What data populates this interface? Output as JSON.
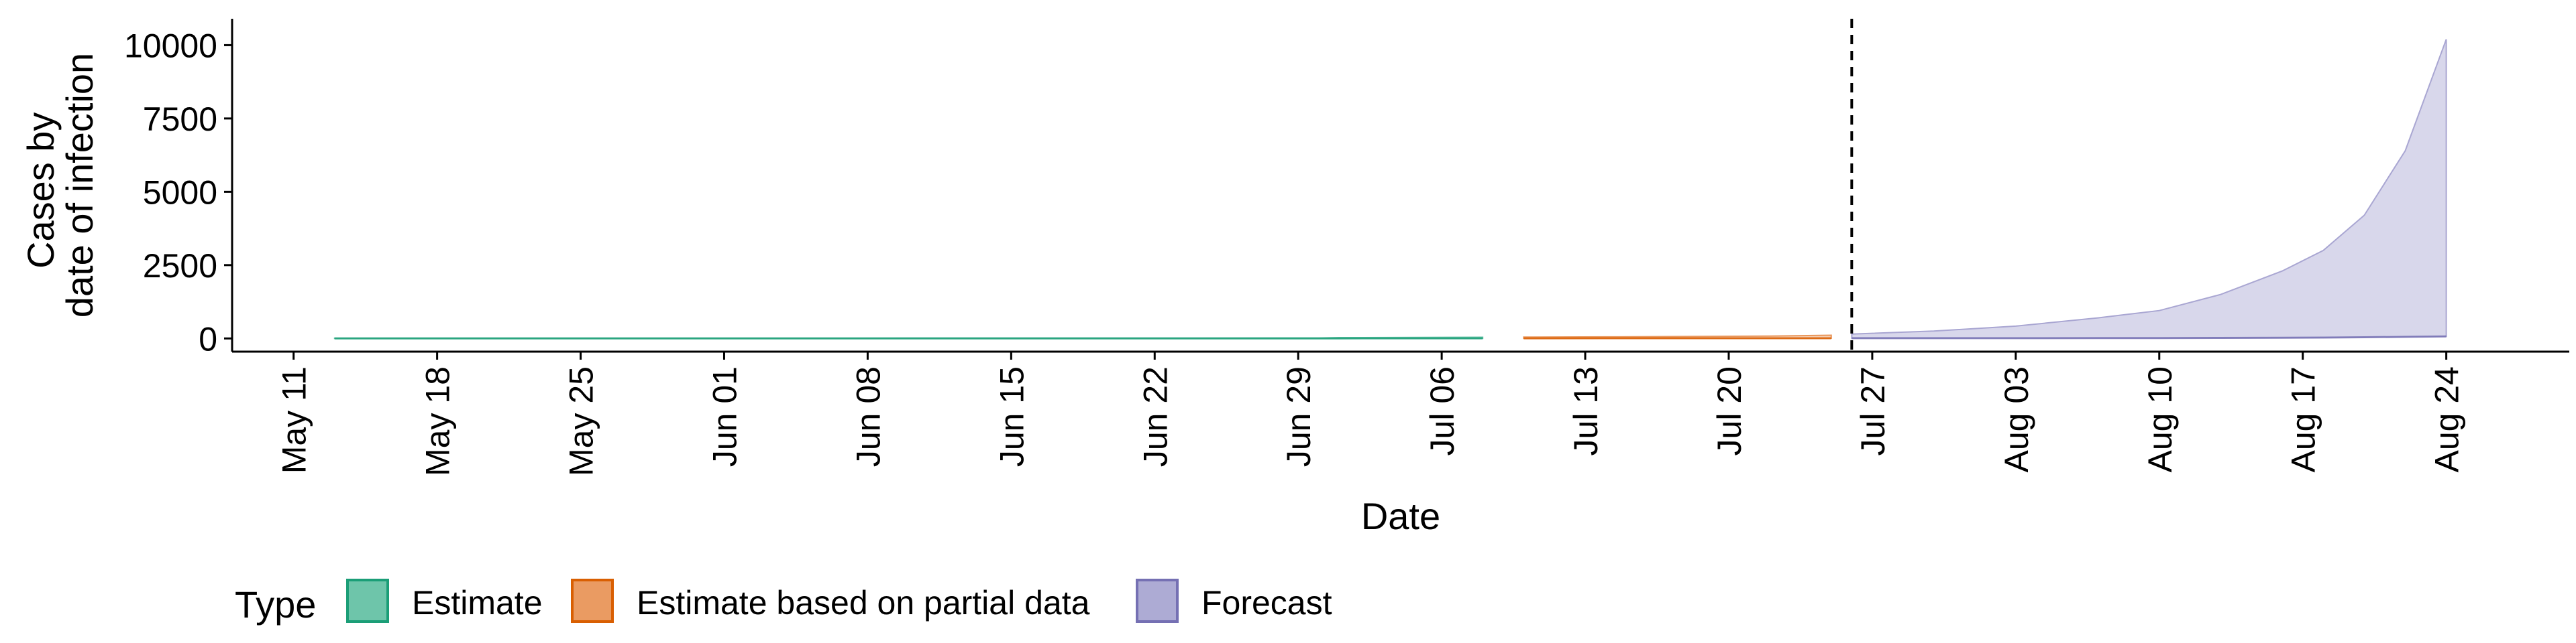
{
  "chart_data": {
    "type": "area",
    "xlabel": "Date",
    "ylabel": [
      "Cases by",
      "date of infection"
    ],
    "yticks": [
      0,
      2500,
      5000,
      7500,
      10000
    ],
    "ylim": [
      -450,
      10900
    ],
    "xlim": [
      "2020-05-08",
      "2020-08-30"
    ],
    "xticks": [
      {
        "date": "2020-05-11",
        "label": "May 11"
      },
      {
        "date": "2020-05-18",
        "label": "May 18"
      },
      {
        "date": "2020-05-25",
        "label": "May 25"
      },
      {
        "date": "2020-06-01",
        "label": "Jun 01"
      },
      {
        "date": "2020-06-08",
        "label": "Jun 08"
      },
      {
        "date": "2020-06-15",
        "label": "Jun 15"
      },
      {
        "date": "2020-06-22",
        "label": "Jun 22"
      },
      {
        "date": "2020-06-29",
        "label": "Jun 29"
      },
      {
        "date": "2020-07-06",
        "label": "Jul 06"
      },
      {
        "date": "2020-07-13",
        "label": "Jul 13"
      },
      {
        "date": "2020-07-20",
        "label": "Jul 20"
      },
      {
        "date": "2020-07-27",
        "label": "Jul 27"
      },
      {
        "date": "2020-08-03",
        "label": "Aug 03"
      },
      {
        "date": "2020-08-10",
        "label": "Aug 10"
      },
      {
        "date": "2020-08-17",
        "label": "Aug 17"
      },
      {
        "date": "2020-08-24",
        "label": "Aug 24"
      }
    ],
    "vline": "2020-07-26",
    "legend": {
      "title": "Type",
      "position": "bottom",
      "entries": [
        "Estimate",
        "Estimate based on partial data",
        "Forecast"
      ]
    },
    "colors": {
      "Estimate": {
        "fill": "#66c2a5",
        "stroke": "#1b9e77"
      },
      "Estimate based on partial data": {
        "fill": "#e9965a",
        "stroke": "#d95f02"
      },
      "Forecast": {
        "fill": "#a9a6d2",
        "stroke": "#7570b3"
      }
    },
    "series": [
      {
        "name": "Estimate",
        "x": [
          "2020-05-13",
          "2020-05-20",
          "2020-05-27",
          "2020-06-03",
          "2020-06-10",
          "2020-06-17",
          "2020-06-24",
          "2020-06-30",
          "2020-07-01",
          "2020-07-05",
          "2020-07-08"
        ],
        "lower": [
          2,
          2,
          2,
          2,
          2,
          2,
          2,
          2,
          3,
          4,
          5
        ],
        "upper": [
          8,
          10,
          10,
          10,
          11,
          12,
          14,
          15,
          30,
          35,
          40
        ]
      },
      {
        "name": "Estimate based on partial data",
        "x": [
          "2020-07-10",
          "2020-07-14",
          "2020-07-18",
          "2020-07-22",
          "2020-07-25"
        ],
        "lower": [
          5,
          6,
          6,
          7,
          7
        ],
        "upper": [
          45,
          55,
          65,
          80,
          110
        ]
      },
      {
        "name": "Forecast",
        "x": [
          "2020-07-26",
          "2020-07-30",
          "2020-08-03",
          "2020-08-07",
          "2020-08-10",
          "2020-08-13",
          "2020-08-16",
          "2020-08-18",
          "2020-08-20",
          "2020-08-22",
          "2020-08-24"
        ],
        "lower": [
          8,
          9,
          10,
          12,
          14,
          18,
          22,
          30,
          40,
          55,
          70
        ],
        "upper": [
          150,
          250,
          420,
          700,
          950,
          1500,
          2300,
          3000,
          4200,
          6400,
          10200
        ]
      }
    ]
  }
}
